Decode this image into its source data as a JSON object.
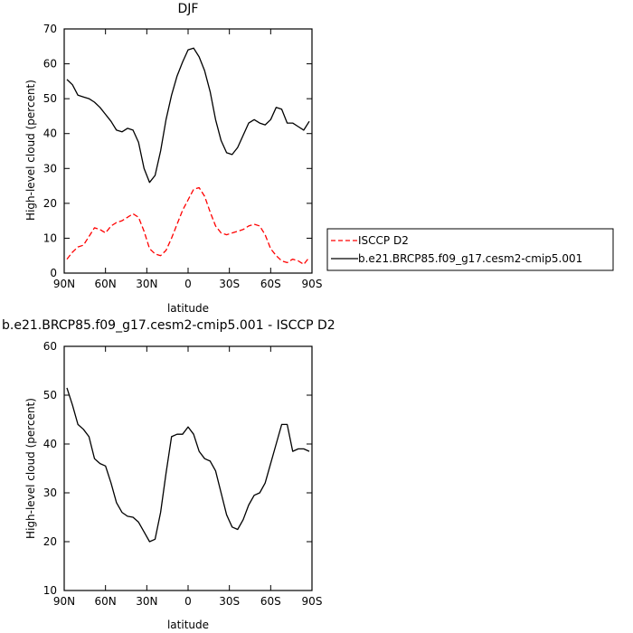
{
  "chart_data": [
    {
      "type": "line",
      "title": "DJF",
      "xlabel": "latitude",
      "ylabel": "High-level cloud (percent)",
      "xlim": [
        -90,
        90
      ],
      "ylim": [
        0,
        70
      ],
      "x_ticks": [
        {
          "value": -90,
          "label": "90N"
        },
        {
          "value": -60,
          "label": "60N"
        },
        {
          "value": -30,
          "label": "30N"
        },
        {
          "value": 0,
          "label": "0"
        },
        {
          "value": 30,
          "label": "30S"
        },
        {
          "value": 60,
          "label": "60S"
        },
        {
          "value": 90,
          "label": "90S"
        }
      ],
      "y_ticks": [
        {
          "value": 0,
          "label": "0"
        },
        {
          "value": 10,
          "label": "10"
        },
        {
          "value": 20,
          "label": "20"
        },
        {
          "value": 30,
          "label": "30"
        },
        {
          "value": 40,
          "label": "40"
        },
        {
          "value": 50,
          "label": "50"
        },
        {
          "value": 60,
          "label": "60"
        },
        {
          "value": 70,
          "label": "70"
        }
      ],
      "grid": false,
      "legend_position": "right",
      "series": [
        {
          "name": "ISCCP D2",
          "color": "#ff0000",
          "dash": true,
          "x": [
            -88,
            -84,
            -80,
            -76,
            -72,
            -68,
            -64,
            -60,
            -56,
            -52,
            -48,
            -44,
            -40,
            -36,
            -32,
            -28,
            -24,
            -20,
            -16,
            -12,
            -8,
            -4,
            0,
            4,
            8,
            12,
            16,
            20,
            24,
            28,
            32,
            36,
            40,
            44,
            48,
            52,
            56,
            60,
            64,
            68,
            72,
            76,
            80,
            84,
            88
          ],
          "y": [
            4,
            6,
            7.5,
            8,
            10.5,
            13,
            12.5,
            11.5,
            13.5,
            14.5,
            15,
            16,
            17,
            16,
            12,
            7,
            5.5,
            5,
            6.5,
            10,
            14,
            18,
            21,
            24,
            24.5,
            22,
            17.5,
            13.5,
            11.5,
            11,
            11.5,
            12,
            12.5,
            13.5,
            14,
            13.5,
            11,
            7,
            5,
            3.5,
            3,
            4,
            3.5,
            2.5,
            4.5
          ]
        },
        {
          "name": "b.e21.BRCP85.f09_g17.cesm2-cmip5.001",
          "color": "#000000",
          "dash": false,
          "x": [
            -88,
            -84,
            -80,
            -76,
            -72,
            -68,
            -64,
            -60,
            -56,
            -52,
            -48,
            -44,
            -40,
            -36,
            -32,
            -28,
            -24,
            -20,
            -16,
            -12,
            -8,
            -4,
            0,
            4,
            8,
            12,
            16,
            20,
            24,
            28,
            32,
            36,
            40,
            44,
            48,
            52,
            56,
            60,
            64,
            68,
            72,
            76,
            80,
            84,
            88
          ],
          "y": [
            55.5,
            54,
            51,
            50.5,
            50,
            49,
            47.5,
            45.5,
            43.5,
            41,
            40.5,
            41.5,
            41,
            37.5,
            30,
            26,
            28,
            35,
            44,
            51,
            56.5,
            60.5,
            64,
            64.5,
            62,
            58,
            52,
            44,
            38,
            34.5,
            34,
            36,
            39.5,
            43,
            44,
            43,
            42.5,
            44,
            47.5,
            47,
            43,
            43,
            42,
            41,
            43.5
          ]
        }
      ]
    },
    {
      "type": "line",
      "title": "b.e21.BRCP85.f09_g17.cesm2-cmip5.001 - ISCCP D2",
      "xlabel": "latitude",
      "ylabel": "High-level cloud (percent)",
      "xlim": [
        -90,
        90
      ],
      "ylim": [
        10,
        60
      ],
      "x_ticks": [
        {
          "value": -90,
          "label": "90N"
        },
        {
          "value": -60,
          "label": "60N"
        },
        {
          "value": -30,
          "label": "30N"
        },
        {
          "value": 0,
          "label": "0"
        },
        {
          "value": 30,
          "label": "30S"
        },
        {
          "value": 60,
          "label": "60S"
        },
        {
          "value": 90,
          "label": "90S"
        }
      ],
      "y_ticks": [
        {
          "value": 10,
          "label": "10"
        },
        {
          "value": 20,
          "label": "20"
        },
        {
          "value": 30,
          "label": "30"
        },
        {
          "value": 40,
          "label": "40"
        },
        {
          "value": 50,
          "label": "50"
        },
        {
          "value": 60,
          "label": "60"
        }
      ],
      "grid": false,
      "series": [
        {
          "color": "#000000",
          "dash": false,
          "x": [
            -88,
            -84,
            -80,
            -76,
            -72,
            -68,
            -64,
            -60,
            -56,
            -52,
            -48,
            -44,
            -40,
            -36,
            -32,
            -28,
            -24,
            -20,
            -16,
            -12,
            -8,
            -4,
            0,
            4,
            8,
            12,
            16,
            20,
            24,
            28,
            32,
            36,
            40,
            44,
            48,
            52,
            56,
            60,
            64,
            68,
            72,
            76,
            80,
            84,
            88
          ],
          "y": [
            51.5,
            48,
            44,
            43,
            41.5,
            37,
            36,
            35.5,
            32,
            28,
            26,
            25.2,
            25,
            24,
            22,
            20,
            20.5,
            26,
            34,
            41.5,
            42,
            42,
            43.5,
            42,
            38.5,
            37,
            36.5,
            34.5,
            30,
            25.5,
            23,
            22.5,
            24.5,
            27.5,
            29.5,
            30,
            32,
            36,
            40,
            44,
            44,
            38.5,
            39,
            39,
            38.5
          ]
        }
      ]
    }
  ]
}
